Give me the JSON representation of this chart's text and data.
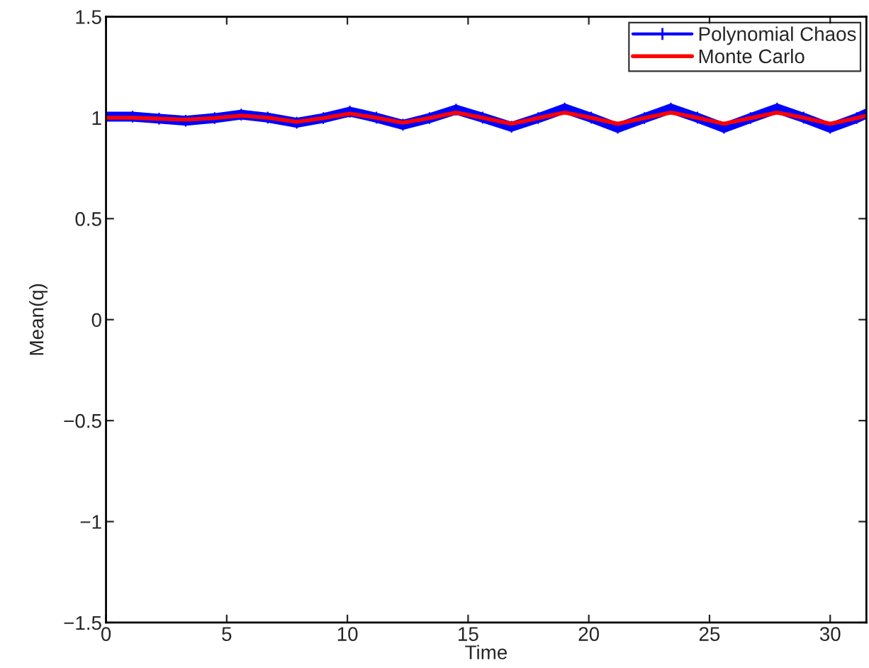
{
  "chart_data": {
    "type": "line",
    "xlabel": "Time",
    "ylabel": "Mean(q)",
    "x": [
      0,
      1.1,
      2.2,
      3.3,
      4.5,
      5.6,
      6.7,
      7.9,
      9.0,
      10.1,
      11.2,
      12.3,
      13.4,
      14.5,
      15.6,
      16.8,
      17.9,
      19.0,
      20.1,
      21.2,
      22.3,
      23.4,
      24.5,
      25.6,
      26.7,
      27.8,
      28.9,
      30.0,
      31.1,
      31.5
    ],
    "series": [
      {
        "name": "Polynomial Chaos",
        "color": "#0000ff",
        "marker": "cross",
        "values": [
          1.005,
          1.005,
          0.995,
          0.985,
          0.998,
          1.015,
          1.0,
          0.975,
          0.998,
          1.03,
          1.0,
          0.965,
          0.998,
          1.04,
          1.0,
          0.955,
          0.998,
          1.045,
          1.0,
          0.95,
          0.998,
          1.045,
          1.0,
          0.95,
          0.998,
          1.045,
          1.0,
          0.95,
          0.998,
          1.02
        ]
      },
      {
        "name": "Monte Carlo",
        "color": "#ff0000",
        "marker": "none",
        "values": [
          1.0,
          1.0,
          0.995,
          0.99,
          0.998,
          1.01,
          1.0,
          0.98,
          0.998,
          1.02,
          1.0,
          0.975,
          0.998,
          1.025,
          1.0,
          0.97,
          0.998,
          1.025,
          1.0,
          0.97,
          0.998,
          1.025,
          1.0,
          0.97,
          0.998,
          1.025,
          1.0,
          0.97,
          0.998,
          1.01
        ]
      }
    ],
    "xlim": [
      0,
      31.5
    ],
    "ylim": [
      -1.5,
      1.5
    ],
    "xticks": [
      0,
      5,
      10,
      15,
      20,
      25,
      30
    ],
    "yticks": [
      {
        "value": -1.5,
        "label": "−1.5"
      },
      {
        "value": -1,
        "label": "−1"
      },
      {
        "value": -0.5,
        "label": "−0.5"
      },
      0,
      0.5,
      1,
      1.5
    ],
    "grid": false,
    "legend": "top right",
    "line_style": "solid"
  }
}
